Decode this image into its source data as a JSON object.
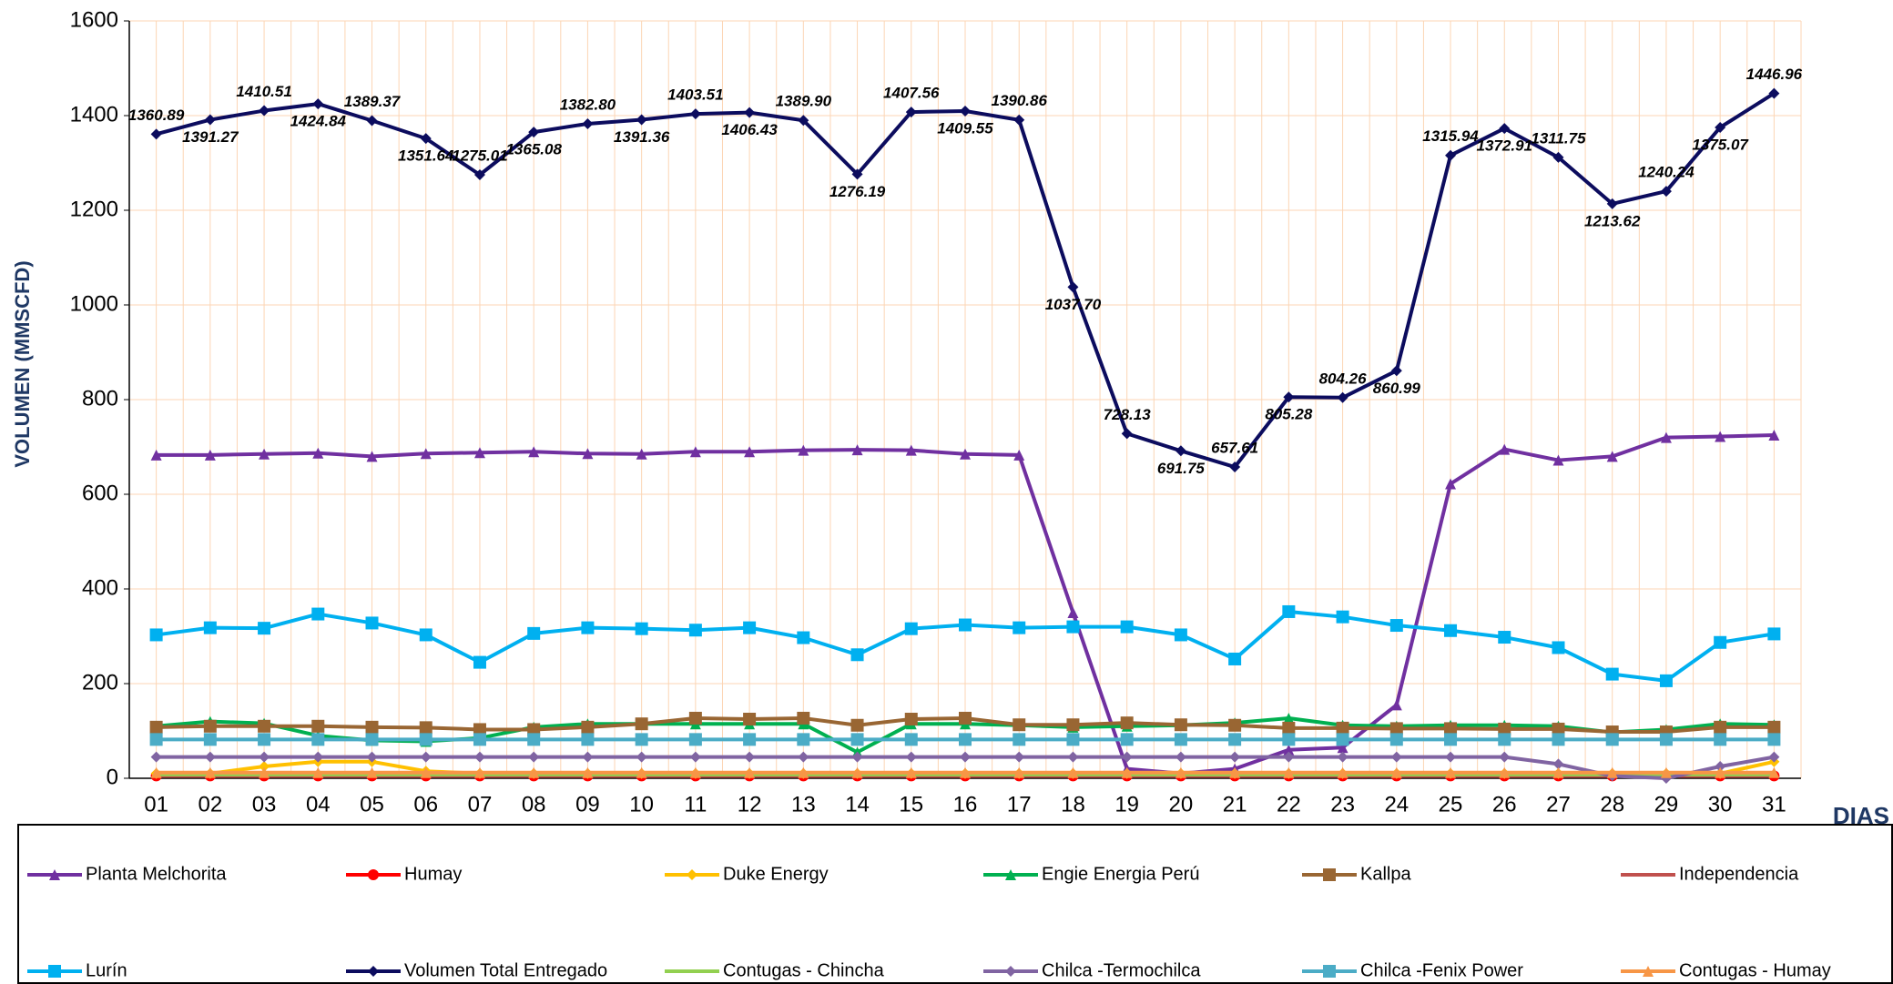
{
  "chart_data": {
    "type": "line",
    "y_label": "VOLUMEN (MMSCFD)",
    "x_label": "DIAS",
    "categories": [
      "01",
      "02",
      "03",
      "04",
      "05",
      "06",
      "07",
      "08",
      "09",
      "10",
      "11",
      "12",
      "13",
      "14",
      "15",
      "16",
      "17",
      "18",
      "19",
      "20",
      "21",
      "22",
      "23",
      "24",
      "25",
      "26",
      "27",
      "28",
      "29",
      "30",
      "31"
    ],
    "ylim": [
      0,
      1600
    ],
    "yticks": [
      0,
      200,
      400,
      600,
      800,
      1000,
      1200,
      1400,
      1600
    ],
    "grid": true,
    "series": [
      {
        "name": "Planta Melchorita",
        "color": "#7030a0",
        "marker": "triangle",
        "values": [
          683,
          683,
          685,
          687,
          680,
          686,
          688,
          690,
          686,
          685,
          690,
          690,
          693,
          694,
          693,
          685,
          683,
          350,
          20,
          10,
          20,
          60,
          65,
          155,
          622,
          695,
          672,
          680,
          720,
          722,
          725
        ]
      },
      {
        "name": "Humay",
        "color": "#ff0000",
        "marker": "circle",
        "values": [
          5,
          5,
          5,
          5,
          5,
          5,
          5,
          5,
          5,
          5,
          5,
          5,
          5,
          5,
          5,
          5,
          5,
          5,
          5,
          5,
          5,
          5,
          5,
          5,
          5,
          5,
          5,
          5,
          5,
          5,
          5
        ]
      },
      {
        "name": "Duke Energy",
        "color": "#ffc000",
        "marker": "diamond",
        "values": [
          10,
          10,
          25,
          35,
          35,
          15,
          10,
          10,
          10,
          10,
          10,
          10,
          10,
          10,
          10,
          10,
          10,
          10,
          10,
          10,
          10,
          10,
          10,
          10,
          10,
          10,
          10,
          10,
          10,
          10,
          35
        ]
      },
      {
        "name": "Engie Energia Perú",
        "color": "#00b050",
        "marker": "triangle",
        "values": [
          110,
          120,
          116,
          90,
          80,
          78,
          85,
          108,
          115,
          115,
          115,
          115,
          115,
          55,
          115,
          115,
          112,
          108,
          110,
          112,
          117,
          127,
          112,
          110,
          112,
          112,
          110,
          97,
          103,
          115,
          113
        ]
      },
      {
        "name": "Kallpa",
        "color": "#996633",
        "marker": "square",
        "values": [
          108,
          110,
          110,
          110,
          108,
          107,
          103,
          103,
          108,
          115,
          127,
          125,
          127,
          112,
          125,
          127,
          113,
          113,
          117,
          113,
          112,
          106,
          106,
          105,
          105,
          104,
          104,
          98,
          98,
          108,
          108
        ]
      },
      {
        "name": "Independencia",
        "color": "#c0504d",
        "marker": "none",
        "values": [
          5,
          5,
          5,
          5,
          5,
          5,
          5,
          5,
          5,
          5,
          5,
          5,
          5,
          5,
          5,
          5,
          5,
          5,
          5,
          5,
          5,
          5,
          5,
          5,
          5,
          5,
          5,
          5,
          5,
          5,
          5
        ]
      },
      {
        "name": "Lurín",
        "color": "#00b0f0",
        "marker": "square",
        "values": [
          303,
          318,
          317,
          347,
          328,
          303,
          245,
          306,
          318,
          316,
          313,
          318,
          297,
          261,
          316,
          324,
          318,
          320,
          320,
          303,
          252,
          352,
          341,
          323,
          312,
          298,
          276,
          220,
          206,
          287,
          305
        ]
      },
      {
        "name": "Volumen Total Entregado",
        "color": "#0c0c5e",
        "marker": "diamond",
        "values": [
          1360.89,
          1391.27,
          1410.51,
          1424.84,
          1389.37,
          1351.64,
          1275.01,
          1365.08,
          1382.8,
          1391.36,
          1403.51,
          1406.43,
          1389.9,
          1276.19,
          1407.56,
          1409.55,
          1390.86,
          1037.7,
          728.13,
          691.75,
          657.61,
          805.28,
          804.26,
          860.99,
          1315.94,
          1372.91,
          1311.75,
          1213.62,
          1240.24,
          1375.07,
          1446.96
        ],
        "value_labels": [
          "1360.89",
          "1391.27",
          "1410.51",
          "1424.84",
          "1389.37",
          "1351.64",
          "1275.01",
          "1365.08",
          "1382.80",
          "1391.36",
          "1403.51",
          "1406.43",
          "1389.90",
          "1276.19",
          "1407.56",
          "1409.55",
          "1390.86",
          "1037.70",
          "728.13",
          "691.75",
          "657.61",
          "805.28",
          "804.26",
          "860.99",
          "1315.94",
          "1372.91",
          "1311.75",
          "1213.62",
          "1240.24",
          "1375.07",
          "1446.96"
        ]
      },
      {
        "name": "Contugas - Chincha",
        "color": "#92d050",
        "marker": "none",
        "values": [
          8,
          8,
          8,
          8,
          8,
          8,
          8,
          8,
          8,
          8,
          8,
          8,
          8,
          8,
          8,
          8,
          8,
          8,
          8,
          8,
          8,
          8,
          8,
          8,
          8,
          8,
          8,
          8,
          8,
          8,
          8
        ]
      },
      {
        "name": "Chilca -Termochilca",
        "color": "#8064a2",
        "marker": "diamond",
        "values": [
          45,
          45,
          45,
          45,
          45,
          45,
          45,
          45,
          45,
          45,
          45,
          45,
          45,
          45,
          45,
          45,
          45,
          45,
          45,
          45,
          45,
          45,
          45,
          45,
          45,
          45,
          30,
          5,
          0,
          25,
          45
        ]
      },
      {
        "name": "Chilca -Fenix Power",
        "color": "#4bacc6",
        "marker": "square",
        "values": [
          82,
          82,
          82,
          82,
          82,
          82,
          82,
          82,
          82,
          82,
          82,
          82,
          82,
          82,
          82,
          82,
          82,
          82,
          82,
          82,
          82,
          82,
          82,
          82,
          82,
          82,
          82,
          82,
          82,
          82,
          82
        ]
      },
      {
        "name": "Contugas - Humay",
        "color": "#f79646",
        "marker": "triangle",
        "values": [
          12,
          12,
          12,
          12,
          12,
          12,
          12,
          12,
          12,
          12,
          12,
          12,
          12,
          12,
          12,
          12,
          12,
          12,
          12,
          12,
          12,
          12,
          12,
          12,
          12,
          12,
          12,
          12,
          12,
          12,
          12
        ]
      }
    ]
  }
}
